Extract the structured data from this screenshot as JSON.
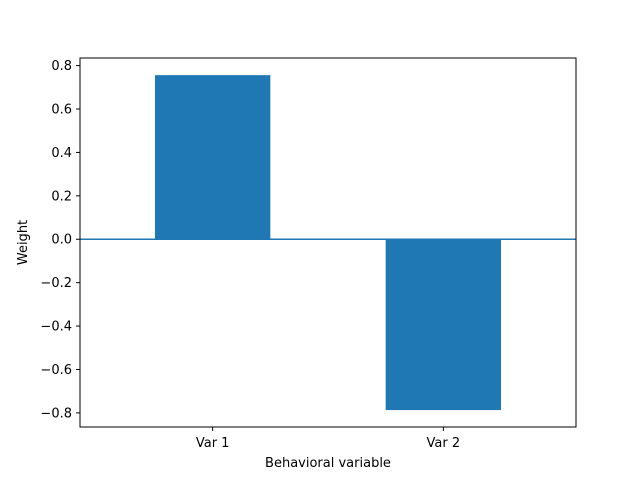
{
  "chart_data": {
    "type": "bar",
    "categories": [
      "Var 1",
      "Var 2"
    ],
    "values": [
      0.756,
      -0.787
    ],
    "title": "",
    "xlabel": "Behavioral variable",
    "ylabel": "Weight",
    "ylim": [
      -0.865,
      0.835
    ],
    "yticks": [
      0.8,
      0.6,
      0.4,
      0.2,
      0.0,
      -0.2,
      -0.4,
      -0.6,
      -0.8
    ],
    "ytick_labels": [
      "0.8",
      "0.6",
      "0.4",
      "0.2",
      "0.0",
      "−0.2",
      "−0.4",
      "−0.6",
      "−0.8"
    ],
    "zero_line": true,
    "grid": false,
    "bar_color": "#1f77b4"
  }
}
